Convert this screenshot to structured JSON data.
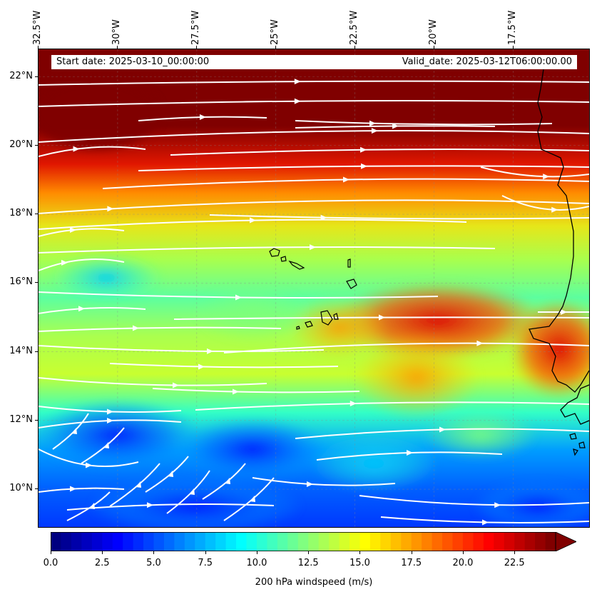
{
  "map": {
    "start_date_label": "Start date: 2025-03-10_00:00:00",
    "valid_date_label": "Valid_date: 2025-03-12T06:00:00.00",
    "lat_labels": [
      "22°N",
      "20°N",
      "18°N",
      "16°N",
      "14°N",
      "12°N",
      "10°N"
    ],
    "lon_labels": [
      "32.5°W",
      "30°W",
      "27.5°W",
      "25°W",
      "22.5°W",
      "20°W",
      "17.5°W"
    ],
    "lat_values": [
      22,
      20,
      18,
      16,
      14,
      12,
      10
    ],
    "lon_values": [
      -32.5,
      -30,
      -27.5,
      -25,
      -22.5,
      -20,
      -17.5
    ],
    "extent": {
      "lon_min": -32.5,
      "lon_max": -15.1,
      "lat_min": 8.9,
      "lat_max": 22.8
    },
    "features": [
      "Cape Verde islands",
      "West African coastline"
    ],
    "streamline_color": "#ffffff",
    "coastline_color": "#000000"
  },
  "colorbar": {
    "title": "200 hPa windspeed (m/s)",
    "tick_labels": [
      "0.0",
      "2.5",
      "5.0",
      "7.5",
      "10.0",
      "12.5",
      "15.0",
      "17.5",
      "20.0",
      "22.5"
    ],
    "tick_values": [
      0,
      2.5,
      5,
      7.5,
      10,
      12.5,
      15,
      17.5,
      20,
      22.5
    ],
    "min": 0,
    "max": 24.5,
    "extend": "max",
    "colormap": "jet"
  },
  "chart_data": {
    "type": "heatmap",
    "title": "",
    "xlabel": "",
    "ylabel": "",
    "field": "200 hPa windspeed (m/s)",
    "xlim": [
      -32.5,
      -15.1
    ],
    "ylim": [
      8.9,
      22.8
    ],
    "zlim": [
      0,
      24.5
    ],
    "grid": true,
    "legend": "colorbar-bottom",
    "regions": [
      {
        "lat": 22,
        "lon": -25,
        "speed": 24.5
      },
      {
        "lat": 20,
        "lon": -25,
        "speed": 24
      },
      {
        "lat": 19,
        "lon": -25,
        "speed": 21
      },
      {
        "lat": 18,
        "lon": -25,
        "speed": 17
      },
      {
        "lat": 17,
        "lon": -25,
        "speed": 14
      },
      {
        "lat": 16,
        "lon": -30,
        "speed": 10
      },
      {
        "lat": 15,
        "lon": -20,
        "speed": 20
      },
      {
        "lat": 14,
        "lon": -16,
        "speed": 22
      },
      {
        "lat": 13,
        "lon": -25,
        "speed": 13
      },
      {
        "lat": 11,
        "lon": -30,
        "speed": 5
      },
      {
        "lat": 10,
        "lon": -27,
        "speed": 6
      },
      {
        "lat": 9.5,
        "lon": -17,
        "speed": 5
      }
    ]
  }
}
